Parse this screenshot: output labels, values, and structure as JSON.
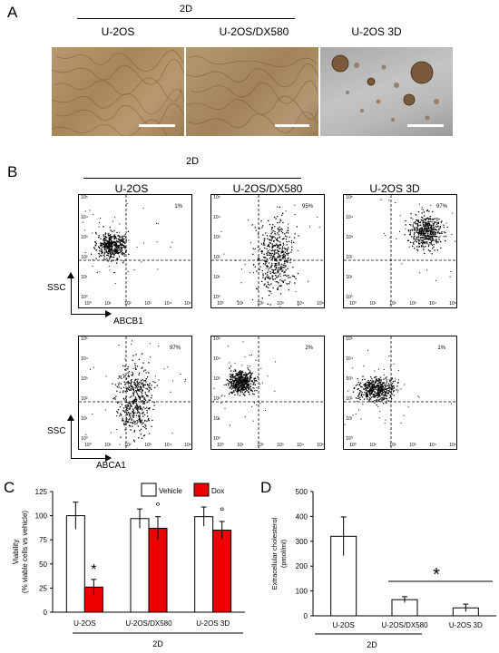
{
  "panel_a": {
    "letter": "A",
    "group_label": "2D",
    "cells": [
      "U-2OS",
      "U-2OS/DX580",
      "U-2OS 3D"
    ]
  },
  "panel_b": {
    "letter": "B",
    "group_label": "2D",
    "columns": [
      "U-2OS",
      "U-2OS/DX580",
      "U-2OS 3D"
    ],
    "row1": {
      "ylabel": "SSC",
      "xlabel": "ABCB1",
      "percents": [
        "1%",
        "95%",
        "97%"
      ]
    },
    "row2": {
      "ylabel": "SSC",
      "xlabel": "ABCA1",
      "percents": [
        "97%",
        "2%",
        "1%"
      ]
    },
    "axis_ticks": [
      "10⁰",
      "10¹",
      "10²",
      "10³",
      "10⁴",
      "10⁵"
    ]
  },
  "panel_c": {
    "letter": "C",
    "chart_data": {
      "type": "bar",
      "categories": [
        "U-2OS",
        "U-2OS/DX580",
        "U-2OS 3D"
      ],
      "series": [
        {
          "name": "Vehicle",
          "values": [
            100,
            97,
            99
          ],
          "errors": [
            14,
            10,
            10
          ],
          "color": "#ffffff"
        },
        {
          "name": "Dox",
          "values": [
            26,
            87,
            85
          ],
          "errors": [
            8,
            12,
            9
          ],
          "color": "#ee0000"
        }
      ],
      "ylabel": "Viability (% viable cells vs vehicle)",
      "ylim": [
        0,
        125
      ],
      "yticks": [
        "0",
        "25",
        "50",
        "75",
        "100",
        "125"
      ],
      "legend": "top-right",
      "annotations": [
        "*",
        "°",
        "°"
      ],
      "group_label": "2D"
    }
  },
  "panel_d": {
    "letter": "D",
    "chart_data": {
      "type": "bar",
      "categories": [
        "U-2OS",
        "U-2OS/DX580",
        "U-2OS 3D"
      ],
      "values": [
        320,
        65,
        32
      ],
      "errors": [
        78,
        12,
        15
      ],
      "ylabel": "Extracellular cholesterol (pmol/ml)",
      "ylim": [
        0,
        500
      ],
      "yticks": [
        "0",
        "100",
        "200",
        "300",
        "400",
        "500"
      ],
      "annotations": [
        "*"
      ],
      "group_label": "2D"
    }
  }
}
